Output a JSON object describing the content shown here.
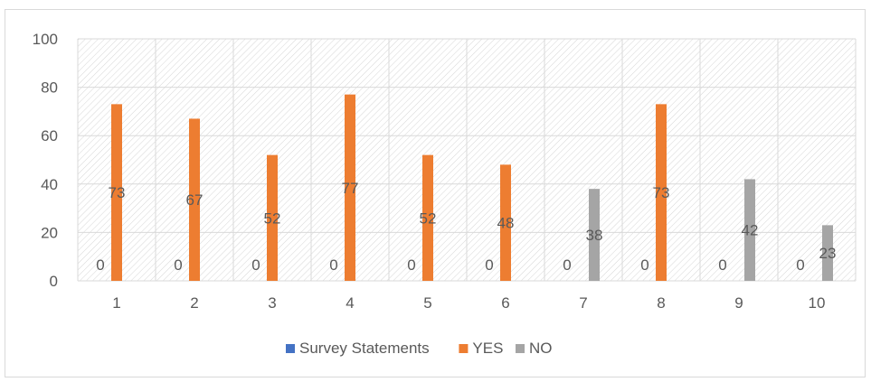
{
  "chart_data": {
    "type": "bar",
    "categories": [
      "1",
      "2",
      "3",
      "4",
      "5",
      "6",
      "7",
      "8",
      "9",
      "10"
    ],
    "series": [
      {
        "name": "Survey Statements",
        "color": "#4472C4",
        "values": [
          0,
          0,
          0,
          0,
          0,
          0,
          0,
          0,
          0,
          0
        ]
      },
      {
        "name": "YES",
        "color": "#ED7D31",
        "values": [
          73,
          67,
          52,
          77,
          52,
          48,
          0,
          73,
          0,
          0
        ]
      },
      {
        "name": "NO",
        "color": "#A5A5A5",
        "values": [
          0,
          0,
          0,
          0,
          0,
          0,
          38,
          0,
          42,
          23
        ]
      }
    ],
    "data_labels": [
      [
        "0",
        "73"
      ],
      [
        "0",
        "67"
      ],
      [
        "0",
        "52"
      ],
      [
        "0",
        "77"
      ],
      [
        "0",
        "52"
      ],
      [
        "0",
        "48"
      ],
      [
        "0",
        "38"
      ],
      [
        "0",
        "73"
      ],
      [
        "0",
        "42"
      ],
      [
        "0",
        "23"
      ]
    ],
    "yticks": [
      "0",
      "20",
      "40",
      "60",
      "80",
      "100"
    ],
    "ylim": [
      0,
      100
    ],
    "grid": true,
    "plot_pattern": "diagonal-hatch",
    "legend": {
      "position": "bottom",
      "items": [
        "Survey Statements",
        "YES",
        "NO"
      ]
    },
    "title": "",
    "xlabel": "",
    "ylabel": ""
  }
}
